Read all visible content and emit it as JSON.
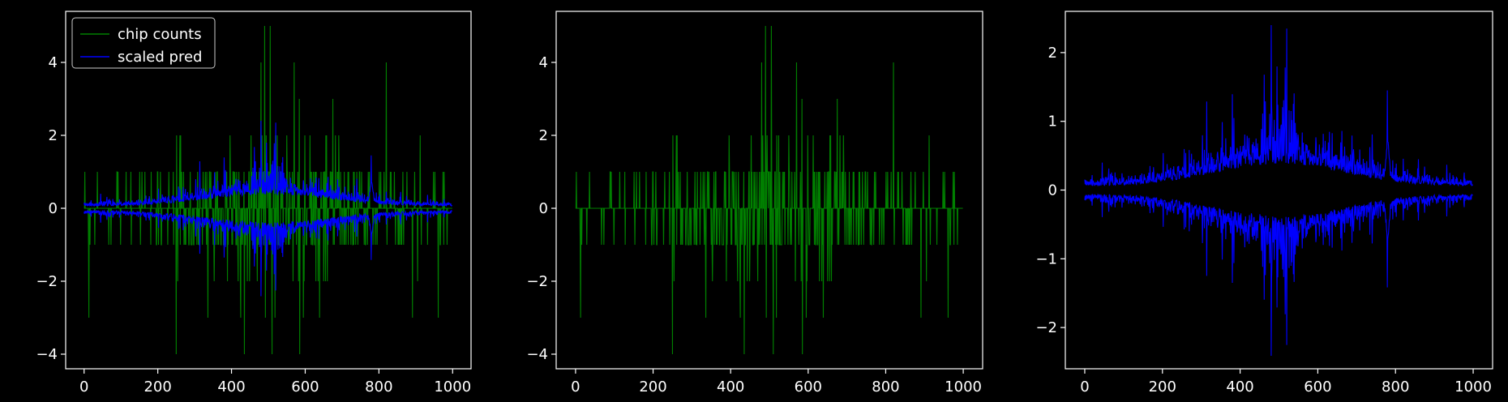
{
  "figure": {
    "background": "#000000",
    "axes_color": "#ffffff"
  },
  "chart_data": [
    {
      "type": "line",
      "title": "",
      "xlabel": "",
      "ylabel": "",
      "xlim": [
        -50,
        1050
      ],
      "ylim": [
        -4.4,
        5.4
      ],
      "xticks": [
        0,
        200,
        400,
        600,
        800,
        1000
      ],
      "yticks": [
        -4,
        -2,
        0,
        2,
        4
      ],
      "grid": false,
      "legend": {
        "placement": "top-left",
        "entries": [
          "chip counts",
          "scaled pred"
        ]
      },
      "series": [
        {
          "name": "chip counts",
          "color": "#008000",
          "kind": "spike-counts",
          "n": 1000
        },
        {
          "name": "scaled pred",
          "color": "#0000ff",
          "kind": "symmetric-envelope",
          "n": 1000
        }
      ]
    },
    {
      "type": "line",
      "title": "",
      "xlabel": "",
      "ylabel": "",
      "xlim": [
        -50,
        1050
      ],
      "ylim": [
        -4.4,
        5.4
      ],
      "xticks": [
        0,
        200,
        400,
        600,
        800,
        1000
      ],
      "yticks": [
        -4,
        -2,
        0,
        2,
        4
      ],
      "grid": false,
      "series": [
        {
          "color": "#008000",
          "kind": "spike-counts",
          "n": 1000
        }
      ]
    },
    {
      "type": "line",
      "title": "",
      "xlabel": "",
      "ylabel": "",
      "xlim": [
        -50,
        1050
      ],
      "ylim": [
        -2.6,
        2.6
      ],
      "xticks": [
        0,
        200,
        400,
        600,
        800,
        1000
      ],
      "yticks": [
        -2,
        -1,
        0,
        1,
        2
      ],
      "grid": false,
      "series": [
        {
          "color": "#0000ff",
          "kind": "symmetric-envelope",
          "n": 1000
        }
      ]
    }
  ]
}
